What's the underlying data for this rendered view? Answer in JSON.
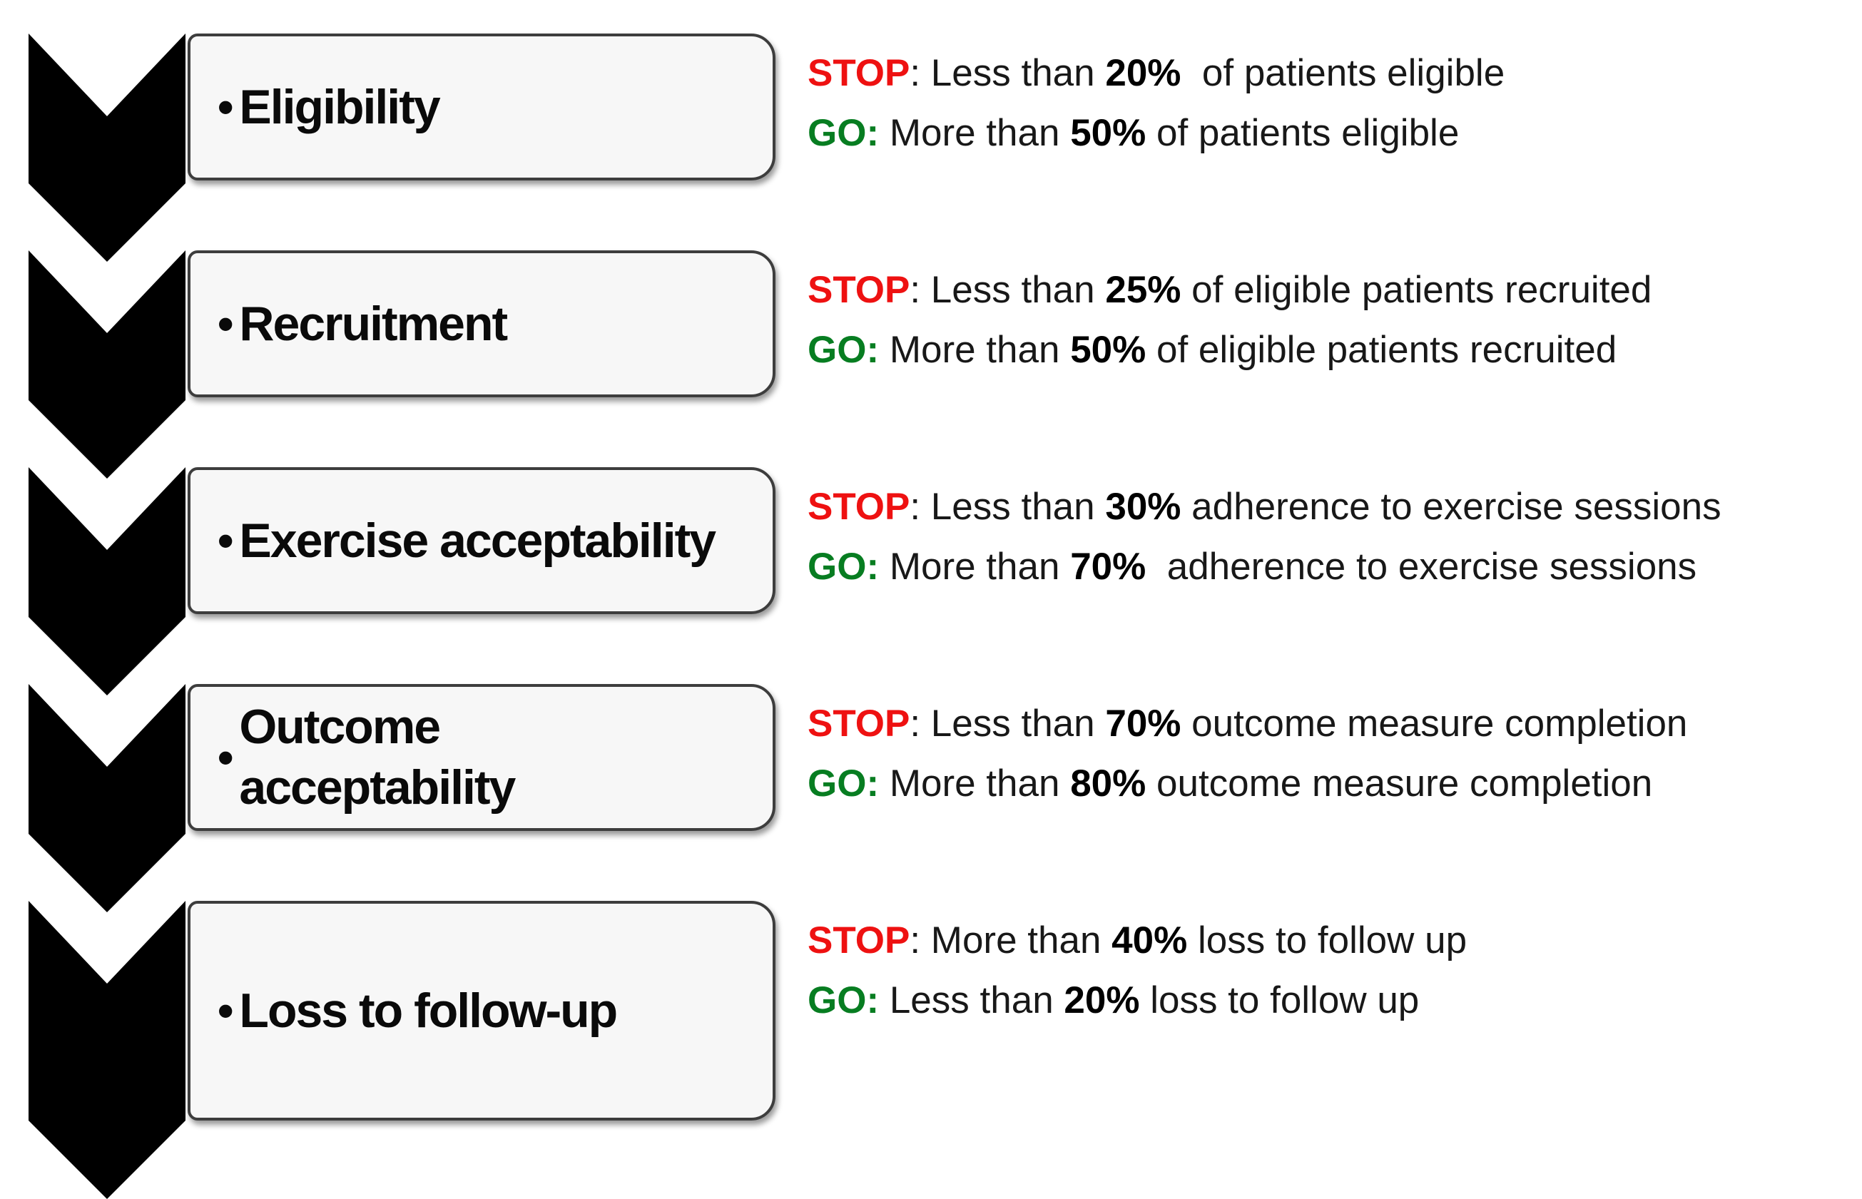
{
  "diagram": {
    "bullet": "•",
    "colors": {
      "stop_red": "#ee1111",
      "go_green": "#077d21",
      "chevron_black": "#000000",
      "box_fill": "#f7f7f7",
      "box_border": "#3d3d3d"
    },
    "rows": [
      {
        "label": "Eligibility",
        "stop": {
          "tag": "STOP",
          "colon": ":",
          "pre": " Less than ",
          "value": "20%",
          "post": "  of patients eligible"
        },
        "go": {
          "tag": "GO:",
          "pre": " More than ",
          "value": "50%",
          "post": " of patients eligible"
        }
      },
      {
        "label": "Recruitment",
        "stop": {
          "tag": "STOP",
          "colon": ":",
          "pre": " Less than ",
          "value": "25%",
          "post": " of eligible patients recruited"
        },
        "go": {
          "tag": "GO:",
          "pre": " More than ",
          "value": "50%",
          "post": " of eligible patients recruited"
        }
      },
      {
        "label": "Exercise acceptability",
        "stop": {
          "tag": "STOP",
          "colon": ":",
          "pre": " Less than ",
          "value": "30%",
          "post": " adherence to exercise sessions"
        },
        "go": {
          "tag": "GO:",
          "pre": " More than ",
          "value": "70%",
          "post": "  adherence to exercise sessions"
        }
      },
      {
        "label": "Outcome acceptability",
        "stop": {
          "tag": "STOP",
          "colon": ":",
          "pre": " Less than ",
          "value": "70%",
          "post": " outcome measure completion"
        },
        "go": {
          "tag": "GO:",
          "pre": " More than ",
          "value": "80%",
          "post": " outcome measure completion"
        }
      },
      {
        "label": "Loss to follow-up",
        "stop": {
          "tag": "STOP",
          "colon": ":",
          "pre": " More than ",
          "value": "40%",
          "post": " loss to follow up"
        },
        "go": {
          "tag": "GO:",
          "pre": " Less than ",
          "value": "20%",
          "post": " loss to follow up"
        }
      }
    ]
  }
}
